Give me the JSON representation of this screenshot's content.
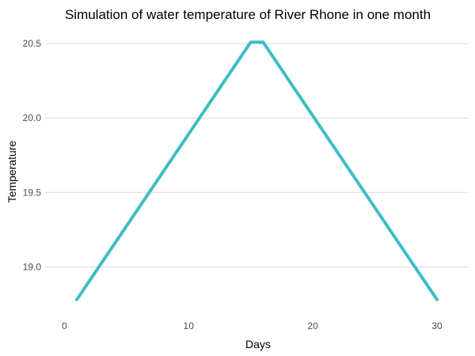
{
  "chart_data": {
    "type": "line",
    "title": "Simulation of water temperature of River Rhone in one month",
    "xlabel": "Days",
    "ylabel": "Temperature",
    "xlim": [
      0,
      31
    ],
    "ylim": [
      18.78,
      20.51
    ],
    "x_ticks": [
      0,
      10,
      20,
      30
    ],
    "y_ticks": [
      19.0,
      19.5,
      20.0,
      20.5
    ],
    "y_tick_labels": [
      "19.0",
      "19.5",
      "20.0",
      "20.5"
    ],
    "grid": "horizontal-major",
    "legend": "none",
    "series": [
      {
        "color": "#3dbdc8",
        "x": [
          1,
          15,
          16,
          30
        ],
        "y": [
          18.78,
          20.51,
          20.51,
          18.78
        ]
      }
    ]
  }
}
